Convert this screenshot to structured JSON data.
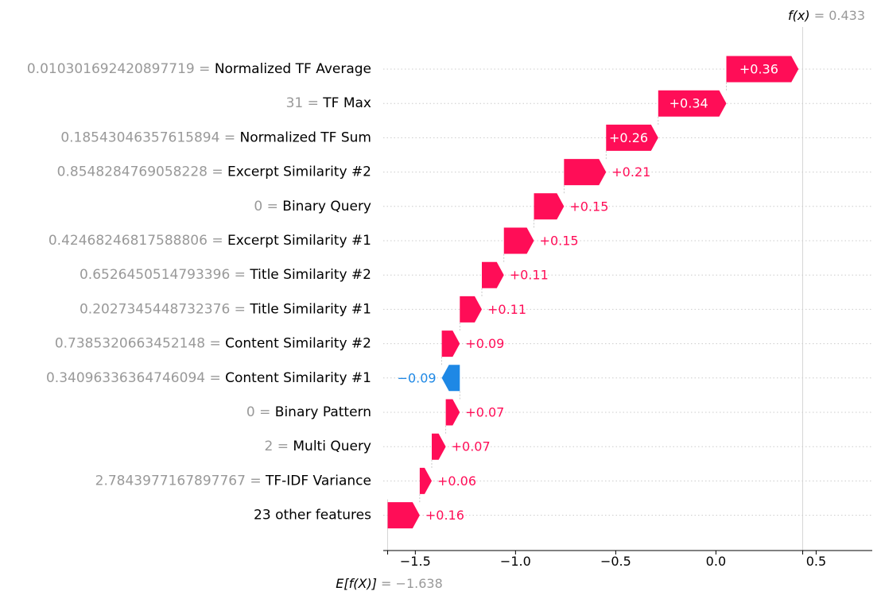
{
  "chart_data": {
    "type": "waterfall",
    "base_value": -1.638,
    "output_value": 0.433,
    "base_label_math": "E[f(X)]",
    "base_label_value": " = −1.638",
    "output_label_math": "f(x)",
    "output_label_value": " = 0.433",
    "xlim": [
      -1.66,
      0.78
    ],
    "xticks": [
      -1.5,
      -1.0,
      -0.5,
      0.0,
      0.5
    ],
    "xtick_labels": [
      "−1.5",
      "−1.0",
      "−0.5",
      "0.0",
      "0.5"
    ],
    "features": [
      {
        "value_text": "0.010301692420897719",
        "name": "Normalized TF Average",
        "contribution": 0.36,
        "label": "+0.36"
      },
      {
        "value_text": "31",
        "name": "TF Max",
        "contribution": 0.34,
        "label": "+0.34"
      },
      {
        "value_text": "0.18543046357615894",
        "name": "Normalized TF Sum",
        "contribution": 0.26,
        "label": "+0.26"
      },
      {
        "value_text": "0.8548284769058228",
        "name": "Excerpt Similarity #2",
        "contribution": 0.21,
        "label": "+0.21"
      },
      {
        "value_text": "0",
        "name": "Binary Query",
        "contribution": 0.15,
        "label": "+0.15"
      },
      {
        "value_text": "0.42468246817588806",
        "name": "Excerpt Similarity #1",
        "contribution": 0.15,
        "label": "+0.15"
      },
      {
        "value_text": "0.6526450514793396",
        "name": "Title Similarity #2",
        "contribution": 0.11,
        "label": "+0.11"
      },
      {
        "value_text": "0.2027345448732376",
        "name": "Title Similarity #1",
        "contribution": 0.11,
        "label": "+0.11"
      },
      {
        "value_text": "0.7385320663452148",
        "name": "Content Similarity #2",
        "contribution": 0.09,
        "label": "+0.09"
      },
      {
        "value_text": "0.34096336364746094",
        "name": "Content Similarity #1",
        "contribution": -0.09,
        "label": "−0.09"
      },
      {
        "value_text": "0",
        "name": "Binary Pattern",
        "contribution": 0.07,
        "label": "+0.07"
      },
      {
        "value_text": "2",
        "name": "Multi Query",
        "contribution": 0.07,
        "label": "+0.07"
      },
      {
        "value_text": "2.7843977167897767",
        "name": "TF-IDF Variance",
        "contribution": 0.06,
        "label": "+0.06"
      },
      {
        "value_text": "",
        "name": "23 other features",
        "contribution": 0.16,
        "label": "+0.16"
      }
    ],
    "colors": {
      "positive": "#ff0d57",
      "negative": "#1e88e5",
      "grid": "#cccccc",
      "feature_value": "#999999"
    }
  }
}
